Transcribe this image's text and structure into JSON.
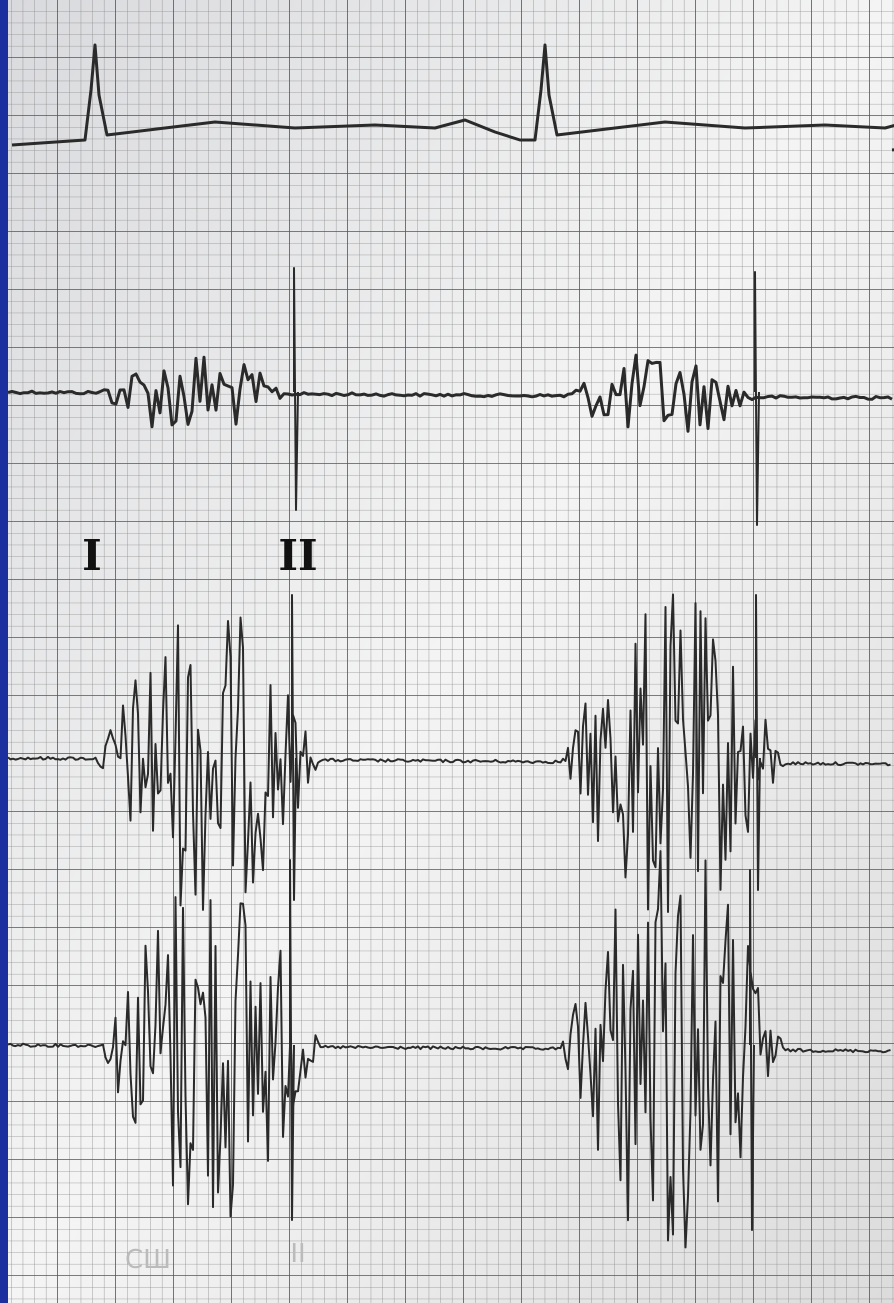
{
  "labels": {
    "first": "I",
    "second": "II"
  },
  "footer": {
    "left": "СШ",
    "right": "II"
  }
}
